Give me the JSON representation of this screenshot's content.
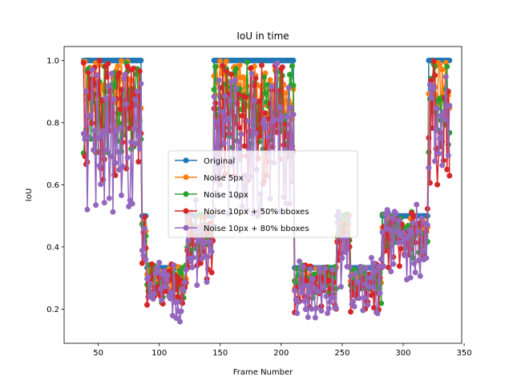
{
  "chart_data": {
    "type": "line",
    "title": "IoU in time",
    "xlabel": "Frame Number",
    "ylabel": "IoU",
    "xlim": [
      22,
      348
    ],
    "ylim": [
      0.09,
      1.045
    ],
    "xticks": [
      50,
      100,
      150,
      200,
      250,
      300,
      350
    ],
    "yticks": [
      0.2,
      0.4,
      0.6,
      0.8,
      1.0
    ],
    "ytick_labels": [
      "0.2",
      "0.4",
      "0.6",
      "0.8",
      "1.0"
    ],
    "grid": false,
    "legend_position": "center",
    "series": [
      {
        "name": "Original",
        "color": "#1f77b4",
        "segments": [
          {
            "start": 38,
            "end": 85,
            "value": 1.0
          },
          {
            "start": 86,
            "end": 89,
            "value": 0.5
          },
          {
            "start": 90,
            "end": 122,
            "value": 0.333
          },
          {
            "start": 123,
            "end": 144,
            "value": 0.5
          },
          {
            "start": 145,
            "end": 210,
            "value": 1.0
          },
          {
            "start": 211,
            "end": 245,
            "value": 0.333
          },
          {
            "start": 246,
            "end": 256,
            "value": 0.5
          },
          {
            "start": 257,
            "end": 282,
            "value": 0.333
          },
          {
            "start": 283,
            "end": 320,
            "value": 0.5
          },
          {
            "start": 321,
            "end": 338,
            "value": 1.0
          }
        ]
      },
      {
        "name": "Noise 5px",
        "color": "#ff7f0e",
        "noise_level": 1
      },
      {
        "name": "Noise 10px",
        "color": "#2ca02c",
        "noise_level": 2
      },
      {
        "name": "Noise 10px + 50% bboxes",
        "color": "#d62728",
        "noise_level": 3
      },
      {
        "name": "Noise 10px + 80% bboxes",
        "color": "#9467bd",
        "noise_level": 4
      }
    ]
  }
}
